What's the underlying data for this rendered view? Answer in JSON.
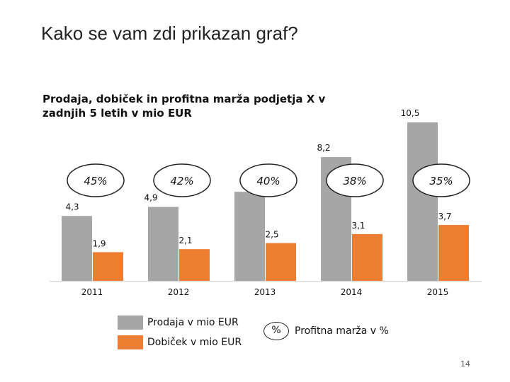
{
  "slide": {
    "title": "Kako se vam zdi prikazan graf?",
    "page_number": "14"
  },
  "chart_data": {
    "type": "bar",
    "title": "Prodaja, dobiček in profitna marža podjetja X v zadnjih 5 letih v mio EUR",
    "categories": [
      "2011",
      "2012",
      "2013",
      "2014",
      "2015"
    ],
    "series": [
      {
        "name": "Prodaja v mio EUR",
        "values": [
          4.3,
          4.9,
          5.9,
          8.2,
          10.5
        ],
        "labels": [
          "4,3",
          "4,9",
          "",
          "8,2",
          "10,5"
        ],
        "color": "#a6a6a6"
      },
      {
        "name": "Dobiček v mio EUR",
        "values": [
          1.9,
          2.1,
          2.5,
          3.1,
          3.7
        ],
        "labels": [
          "1,9",
          "2,1",
          "2,5",
          "3,1",
          "3,7"
        ],
        "color": "#ed7d31"
      }
    ],
    "margin_series": {
      "name": "Profitna marža v %",
      "values": [
        45,
        42,
        40,
        38,
        35
      ],
      "labels": [
        "45%",
        "42%",
        "40%",
        "38%",
        "35%"
      ]
    },
    "legend_marker_text": "%",
    "ylim": [
      0,
      10.5
    ]
  }
}
